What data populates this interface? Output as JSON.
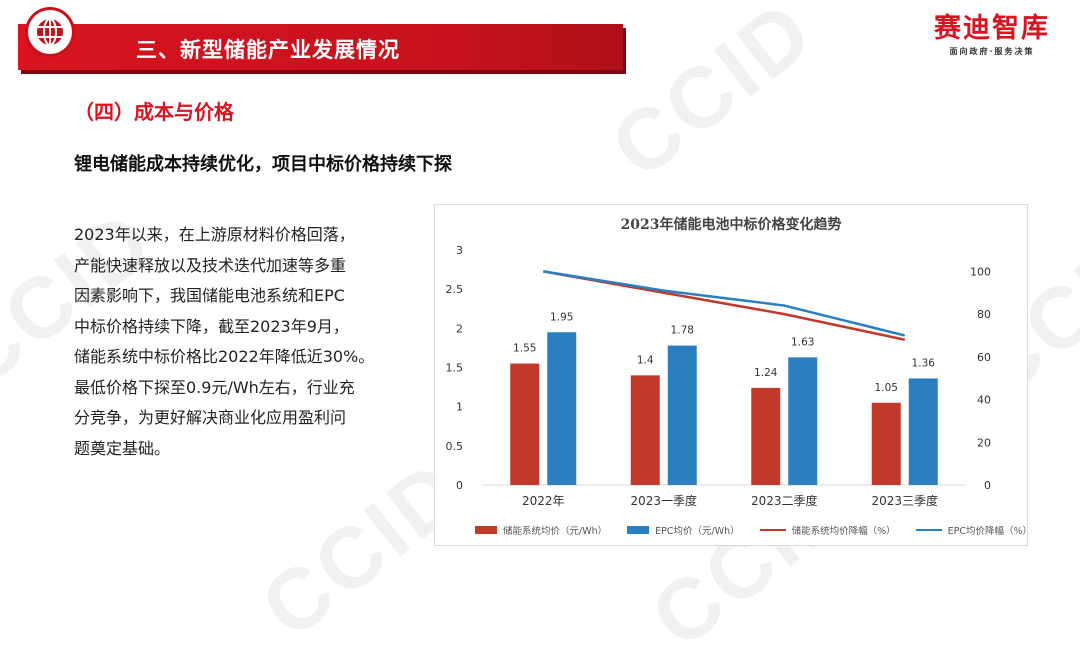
{
  "header": {
    "title": "三、新型储能产业发展情况",
    "icon": "globe-icon"
  },
  "brand": {
    "name": "赛迪智库",
    "slogan": "面向政府·服务决策",
    "color": "#d7141f"
  },
  "watermark": "CCID",
  "section_title": "（四）成本与价格",
  "subheading": "锂电储能成本持续优化，项目中标价格持续下探",
  "body_lines": [
    "2023年以来，在上游原材料价格回落，",
    "产能快速释放以及技术迭代加速等多重",
    "因素影响下，我国储能电池系统和EPC",
    "中标价格持续下降，截至2023年9月，",
    "储能系统中标价格比2022年降低近30%。",
    "最低价格下探至0.9元/Wh左右，行业充",
    "分竞争，为更好解决商业化应用盈利问",
    "题奠定基础。"
  ],
  "chart_data": {
    "type": "bar",
    "title": "2023年储能电池中标价格变化趋势",
    "categories": [
      "2022年",
      "2023一季度",
      "2023二季度",
      "2023三季度"
    ],
    "series": [
      {
        "name": "储能系统均价（元/Wh）",
        "type": "bar",
        "axis": "left",
        "color": "#c0392b",
        "values": [
          1.55,
          1.4,
          1.24,
          1.05
        ]
      },
      {
        "name": "EPC均价（元/Wh）",
        "type": "bar",
        "axis": "left",
        "color": "#2a7fc1",
        "values": [
          1.95,
          1.78,
          1.63,
          1.36
        ]
      },
      {
        "name": "储能系统均价降幅（%）",
        "type": "line",
        "axis": "right",
        "color": "#c0392b",
        "values": [
          100,
          90,
          80,
          68
        ]
      },
      {
        "name": "EPC均价降幅（%）",
        "type": "line",
        "axis": "right",
        "color": "#2a7fc1",
        "values": [
          100,
          91,
          84,
          70
        ]
      }
    ],
    "y_left": {
      "min": 0,
      "max": 3,
      "ticks": [
        "0",
        "0.5",
        "1",
        "1.5",
        "2",
        "2.5",
        "3"
      ]
    },
    "y_right": {
      "min": 0,
      "max": 110,
      "ticks": [
        "0",
        "20",
        "40",
        "60",
        "80",
        "100"
      ]
    },
    "grid": false,
    "legend": "bottom"
  }
}
